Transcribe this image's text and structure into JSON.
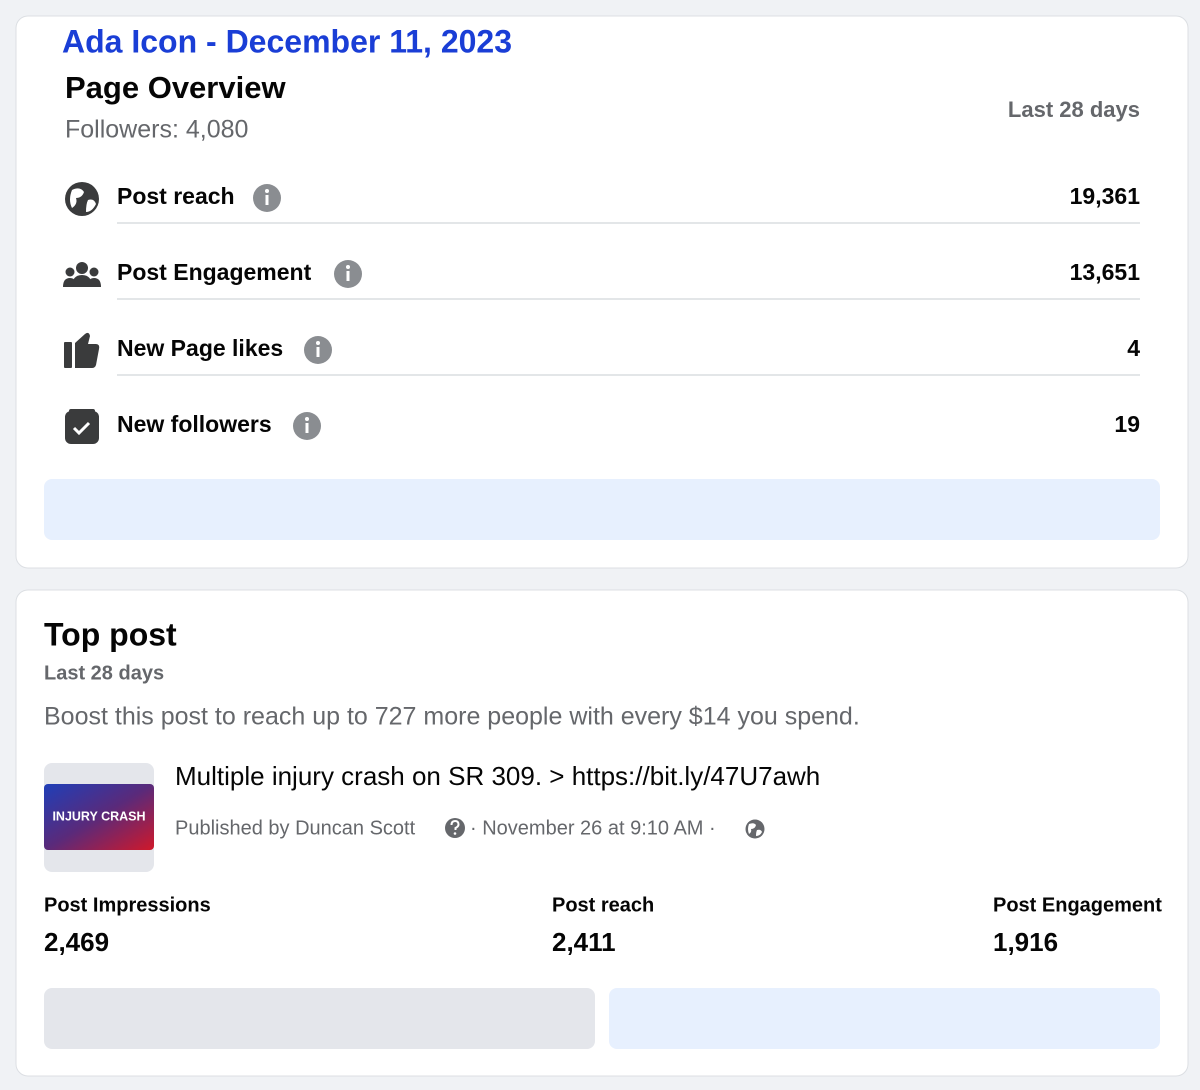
{
  "header": {
    "title": "Ada Icon - December 11, 2023"
  },
  "overview": {
    "title": "Page Overview",
    "followers": "Followers: 4,080",
    "period": "Last 28 days",
    "metrics": [
      {
        "label": "Post reach",
        "value": "19,361"
      },
      {
        "label": "Post Engagement",
        "value": "13,651"
      },
      {
        "label": "New Page likes",
        "value": "4"
      },
      {
        "label": "New followers",
        "value": "19"
      }
    ]
  },
  "top_post": {
    "title": "Top post",
    "period": "Last 28 days",
    "boost": "Boost this post to reach up to 727 more people with every $14 you spend.",
    "post_title": "Multiple injury crash on SR 309. > https://bit.ly/47U7awh",
    "thumbnail_text": "INJURY CRASH",
    "published_by": "Published by Duncan Scott",
    "published_time": "· November 26 at 9:10 AM ·",
    "stats": [
      {
        "label": "Post Impressions",
        "value": "2,469"
      },
      {
        "label": "Post reach",
        "value": "2,411"
      },
      {
        "label": "Post Engagement",
        "value": "1,916"
      }
    ]
  }
}
